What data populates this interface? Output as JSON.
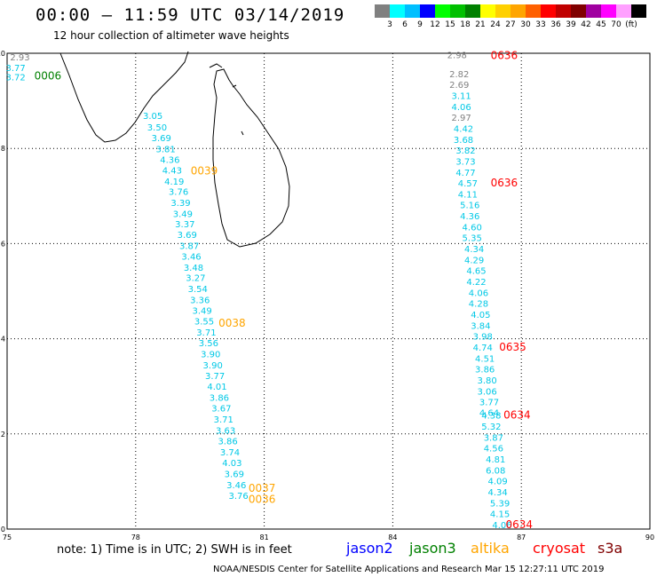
{
  "header": {
    "title": "00:00 – 11:59 UTC 03/14/2019",
    "subtitle": "12 hour collection of altimeter wave heights"
  },
  "colorbar": {
    "labels": [
      "3",
      "6",
      "9",
      "12",
      "15",
      "18",
      "21",
      "24",
      "27",
      "30",
      "33",
      "36",
      "39",
      "42",
      "45",
      "70",
      "(ft)"
    ],
    "colors": [
      "#808080",
      "#00ffff",
      "#00bfff",
      "#0000ff",
      "#00ff00",
      "#00c000",
      "#008000",
      "#ffff00",
      "#ffd000",
      "#ffa500",
      "#ff6000",
      "#ff0000",
      "#c00000",
      "#800000",
      "#a000a0",
      "#ff00ff",
      "#ffa0ff",
      "#000000"
    ]
  },
  "axes": {
    "x_ticks": [
      "75",
      "78",
      "81",
      "84",
      "87",
      "90"
    ],
    "y_ticks": [
      "0",
      "2",
      "4",
      "6",
      "8",
      "10"
    ],
    "xlim": [
      75,
      90
    ],
    "ylim": [
      0,
      10
    ]
  },
  "tracks": [
    {
      "name": "left-top",
      "points": [
        {
          "lon": 75.3,
          "lat": 9.85,
          "v": "2.93",
          "c": "#808080"
        },
        {
          "lon": 75.2,
          "lat": 9.63,
          "v": "3.77",
          "c": "#00c8e6"
        },
        {
          "lon": 75.2,
          "lat": 9.43,
          "v": "3.72",
          "c": "#00c8e6"
        }
      ]
    },
    {
      "name": "track-0039-0036",
      "points": [
        {
          "lon": 78.4,
          "lat": 8.62,
          "v": "3.05"
        },
        {
          "lon": 78.5,
          "lat": 8.38,
          "v": "3.50"
        },
        {
          "lon": 78.6,
          "lat": 8.15,
          "v": "3.69"
        },
        {
          "lon": 78.7,
          "lat": 7.92,
          "v": "3.81"
        },
        {
          "lon": 78.8,
          "lat": 7.7,
          "v": "4.36"
        },
        {
          "lon": 78.85,
          "lat": 7.47,
          "v": "4.43"
        },
        {
          "lon": 78.9,
          "lat": 7.24,
          "v": "4.19"
        },
        {
          "lon": 79.0,
          "lat": 7.02,
          "v": "3.76"
        },
        {
          "lon": 79.05,
          "lat": 6.79,
          "v": "3.39"
        },
        {
          "lon": 79.1,
          "lat": 6.56,
          "v": "3.49"
        },
        {
          "lon": 79.15,
          "lat": 6.34,
          "v": "3.37"
        },
        {
          "lon": 79.2,
          "lat": 6.12,
          "v": "3.69"
        },
        {
          "lon": 79.25,
          "lat": 5.89,
          "v": "3.87"
        },
        {
          "lon": 79.3,
          "lat": 5.66,
          "v": "3.46"
        },
        {
          "lon": 79.35,
          "lat": 5.43,
          "v": "3.48"
        },
        {
          "lon": 79.4,
          "lat": 5.21,
          "v": "3.27"
        },
        {
          "lon": 79.45,
          "lat": 4.98,
          "v": "3.54"
        },
        {
          "lon": 79.5,
          "lat": 4.75,
          "v": "3.36"
        },
        {
          "lon": 79.55,
          "lat": 4.52,
          "v": "3.49"
        },
        {
          "lon": 79.6,
          "lat": 4.3,
          "v": "3.55"
        },
        {
          "lon": 79.65,
          "lat": 4.07,
          "v": "3.71"
        },
        {
          "lon": 79.7,
          "lat": 3.84,
          "v": "3.56"
        },
        {
          "lon": 79.75,
          "lat": 3.61,
          "v": "3.90"
        },
        {
          "lon": 79.8,
          "lat": 3.38,
          "v": "3.90"
        },
        {
          "lon": 79.85,
          "lat": 3.15,
          "v": "3.77"
        },
        {
          "lon": 79.9,
          "lat": 2.93,
          "v": "4.01"
        },
        {
          "lon": 79.95,
          "lat": 2.7,
          "v": "3.86"
        },
        {
          "lon": 80.0,
          "lat": 2.47,
          "v": "3.67"
        },
        {
          "lon": 80.05,
          "lat": 2.24,
          "v": "3.71"
        },
        {
          "lon": 80.1,
          "lat": 2.01,
          "v": "3.63"
        },
        {
          "lon": 80.15,
          "lat": 1.78,
          "v": "3.86"
        },
        {
          "lon": 80.2,
          "lat": 1.55,
          "v": "3.74"
        },
        {
          "lon": 80.25,
          "lat": 1.32,
          "v": "4.03"
        },
        {
          "lon": 80.3,
          "lat": 1.09,
          "v": "3.69"
        },
        {
          "lon": 80.35,
          "lat": 0.86,
          "v": "3.46"
        },
        {
          "lon": 80.4,
          "lat": 0.63,
          "v": "3.76"
        }
      ]
    },
    {
      "name": "track-0636-0634",
      "points": [
        {
          "lon": 85.5,
          "lat": 9.9,
          "v": "2.98",
          "c": "#808080"
        },
        {
          "lon": 85.55,
          "lat": 9.5,
          "v": "2.82",
          "c": "#808080"
        },
        {
          "lon": 85.55,
          "lat": 9.27,
          "v": "2.69",
          "c": "#808080"
        },
        {
          "lon": 85.6,
          "lat": 9.04,
          "v": "3.11"
        },
        {
          "lon": 85.6,
          "lat": 8.81,
          "v": "4.06"
        },
        {
          "lon": 85.6,
          "lat": 8.58,
          "v": "2.97",
          "c": "#808080"
        },
        {
          "lon": 85.65,
          "lat": 8.35,
          "v": "4.42"
        },
        {
          "lon": 85.65,
          "lat": 8.12,
          "v": "3.68"
        },
        {
          "lon": 85.7,
          "lat": 7.89,
          "v": "3.82"
        },
        {
          "lon": 85.7,
          "lat": 7.66,
          "v": "3.73"
        },
        {
          "lon": 85.7,
          "lat": 7.43,
          "v": "4.77"
        },
        {
          "lon": 85.75,
          "lat": 7.2,
          "v": "4.57"
        },
        {
          "lon": 85.75,
          "lat": 6.97,
          "v": "4.11"
        },
        {
          "lon": 85.8,
          "lat": 6.74,
          "v": "5.16"
        },
        {
          "lon": 85.8,
          "lat": 6.51,
          "v": "4.36"
        },
        {
          "lon": 85.85,
          "lat": 6.28,
          "v": "4.60"
        },
        {
          "lon": 85.85,
          "lat": 6.05,
          "v": "5.35"
        },
        {
          "lon": 85.9,
          "lat": 5.82,
          "v": "4.34"
        },
        {
          "lon": 85.9,
          "lat": 5.59,
          "v": "4.29"
        },
        {
          "lon": 85.95,
          "lat": 5.36,
          "v": "4.65"
        },
        {
          "lon": 85.95,
          "lat": 5.13,
          "v": "4.22"
        },
        {
          "lon": 86.0,
          "lat": 4.9,
          "v": "4.06"
        },
        {
          "lon": 86.0,
          "lat": 4.67,
          "v": "4.28"
        },
        {
          "lon": 86.05,
          "lat": 4.44,
          "v": "4.05"
        },
        {
          "lon": 86.05,
          "lat": 4.21,
          "v": "3.84"
        },
        {
          "lon": 86.1,
          "lat": 3.98,
          "v": "3.98"
        },
        {
          "lon": 86.1,
          "lat": 3.75,
          "v": "4.74"
        },
        {
          "lon": 86.15,
          "lat": 3.52,
          "v": "4.51"
        },
        {
          "lon": 86.15,
          "lat": 3.29,
          "v": "3.86"
        },
        {
          "lon": 86.2,
          "lat": 3.06,
          "v": "3.80"
        },
        {
          "lon": 86.2,
          "lat": 2.83,
          "v": "3.06"
        },
        {
          "lon": 86.25,
          "lat": 2.6,
          "v": "3.77"
        },
        {
          "lon": 86.25,
          "lat": 2.38,
          "v": "4.64"
        },
        {
          "lon": 86.3,
          "lat": 2.32,
          "v": "4.38"
        },
        {
          "lon": 86.3,
          "lat": 2.09,
          "v": "5.32"
        },
        {
          "lon": 86.35,
          "lat": 1.86,
          "v": "3.87"
        },
        {
          "lon": 86.35,
          "lat": 1.63,
          "v": "4.56"
        },
        {
          "lon": 86.4,
          "lat": 1.4,
          "v": "4.81"
        },
        {
          "lon": 86.4,
          "lat": 1.17,
          "v": "6.08"
        },
        {
          "lon": 86.45,
          "lat": 0.94,
          "v": "4.09"
        },
        {
          "lon": 86.45,
          "lat": 0.71,
          "v": "4.34"
        },
        {
          "lon": 86.5,
          "lat": 0.48,
          "v": "5.39"
        },
        {
          "lon": 86.5,
          "lat": 0.25,
          "v": "4.15"
        },
        {
          "lon": 86.55,
          "lat": 0.02,
          "v": "4.06"
        }
      ]
    }
  ],
  "time_labels": [
    {
      "lon": 75.95,
      "lat": 9.45,
      "t": "0006",
      "c": "#008000"
    },
    {
      "lon": 79.6,
      "lat": 7.45,
      "t": "0039",
      "c": "#ffa500"
    },
    {
      "lon": 80.25,
      "lat": 4.25,
      "t": "0038",
      "c": "#ffa500"
    },
    {
      "lon": 80.95,
      "lat": 0.78,
      "t": "0037",
      "c": "#ffa500"
    },
    {
      "lon": 80.95,
      "lat": 0.55,
      "t": "0036",
      "c": "#ffa500"
    },
    {
      "lon": 86.6,
      "lat": 9.88,
      "t": "0636",
      "c": "#ff0000"
    },
    {
      "lon": 86.6,
      "lat": 7.2,
      "t": "0636",
      "c": "#ff0000"
    },
    {
      "lon": 86.8,
      "lat": 3.75,
      "t": "0635",
      "c": "#ff0000"
    },
    {
      "lon": 86.9,
      "lat": 2.32,
      "t": "0634",
      "c": "#ff0000"
    },
    {
      "lon": 86.95,
      "lat": 0.02,
      "t": "0634",
      "c": "#ff0000"
    }
  ],
  "footer": {
    "note": "note: 1) Time is in UTC; 2) SWH is in feet",
    "legend": [
      {
        "label": "jason2",
        "color": "#0000ff"
      },
      {
        "label": "jason3",
        "color": "#008000"
      },
      {
        "label": "altika",
        "color": "#ffa500"
      },
      {
        "label": "cryosat",
        "color": "#ff0000"
      },
      {
        "label": "s3a",
        "color": "#800000"
      }
    ],
    "credit": "NOAA/NESDIS Center for Satellite Applications and Research    Mar 15 12:27:11 UTC 2019"
  }
}
